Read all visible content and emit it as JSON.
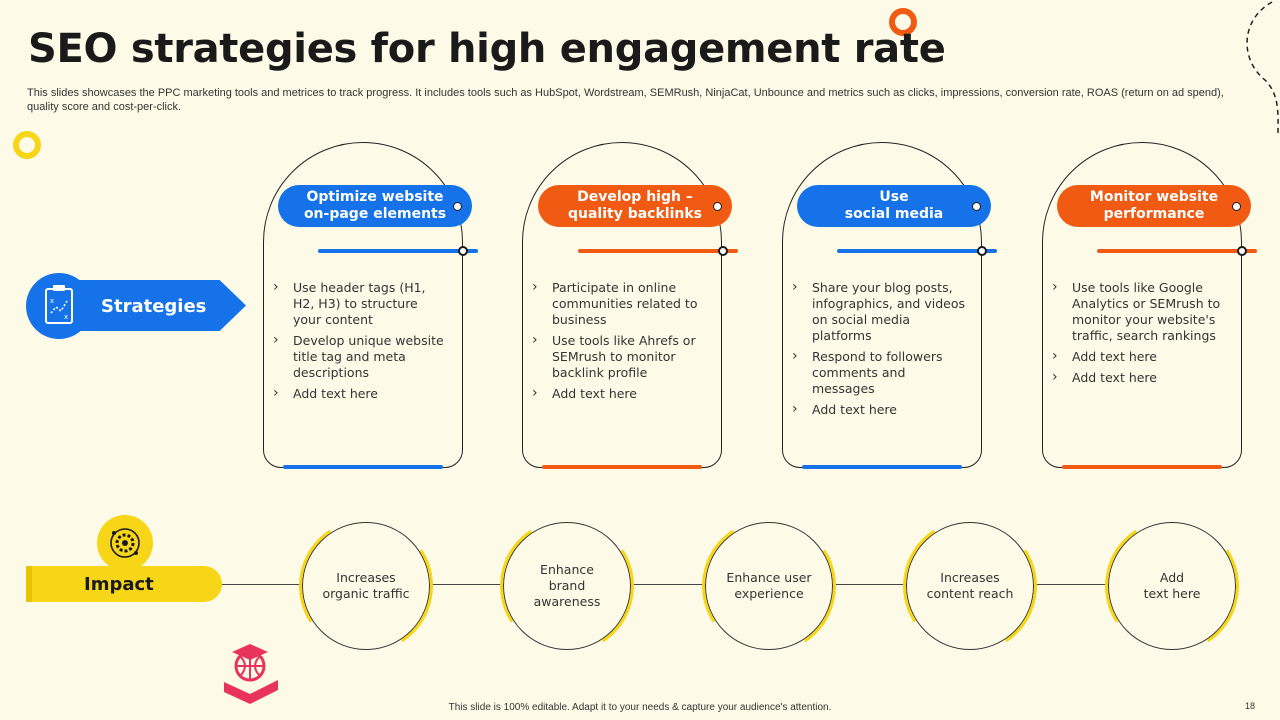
{
  "slide": {
    "title": "SEO strategies for high engagement rate",
    "subtitle": "This slides showcases the PPC marketing tools and metrices to track progress. It includes tools such as HubSpot, Wordstream, SEMRush, NinjaCat, Unbounce and metrics such as clicks, impressions, conversion rate, ROAS (return on ad spend), quality score and cost-per-click.",
    "footer": "This slide is 100% editable.  Adapt it to your needs & capture your audience's attention.",
    "page_number": "18"
  },
  "colors": {
    "blue": "#1572e8",
    "orange": "#f15a12",
    "yellow": "#f6d617",
    "background": "#fdfbe8"
  },
  "strategies": {
    "label": "Strategies",
    "icon": "clipboard-plan-icon",
    "cards": [
      {
        "title_line1": "Optimize website",
        "title_line2": "on-page elements",
        "color": "#1572e8",
        "bullets": [
          "Use header tags (H1, H2, H3) to structure your content",
          "Develop unique website title tag and meta descriptions",
          "Add text here"
        ]
      },
      {
        "title_line1": "Develop high –",
        "title_line2": "quality backlinks",
        "color": "#f15a12",
        "bullets": [
          "Participate in online communities related to business",
          "Use tools like Ahrefs or SEMrush to monitor backlink profile",
          "Add text here"
        ]
      },
      {
        "title_line1": "Use",
        "title_line2": "social media",
        "color": "#1572e8",
        "bullets": [
          "Share your blog posts, infographics,  and videos on social media platforms",
          "Respond to followers comments and messages",
          "Add text here"
        ]
      },
      {
        "title_line1": "Monitor website",
        "title_line2": "performance",
        "color": "#f15a12",
        "bullets": [
          "Use tools like Google Analytics or SEMrush to monitor your website's traffic,  search rankings",
          "Add text here",
          "Add text here"
        ]
      }
    ]
  },
  "impact": {
    "label": "Impact",
    "icon": "target-gear-icon",
    "items": [
      {
        "line1": "Increases",
        "line2": "organic traffic",
        "line3": ""
      },
      {
        "line1": "Enhance",
        "line2": "brand",
        "line3": "awareness"
      },
      {
        "line1": "Enhance user",
        "line2": "experience",
        "line3": ""
      },
      {
        "line1": "Increases",
        "line2": "content reach",
        "line3": ""
      },
      {
        "line1": "Add",
        "line2": "text here",
        "line3": ""
      }
    ]
  }
}
